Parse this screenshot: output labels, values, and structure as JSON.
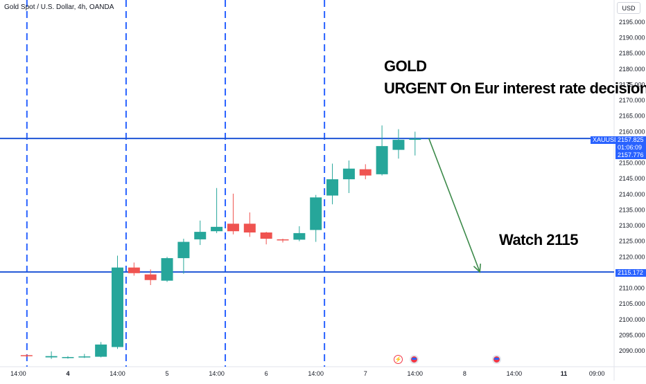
{
  "header": {
    "symbol_title": "Gold Spot / U.S. Dollar, 4h, OANDA",
    "currency": "USD"
  },
  "annotations": {
    "line1": "GOLD",
    "line2": "URGENT On Eur interest rate decision",
    "target": "Watch 2115"
  },
  "price_tags": {
    "symbol": "XAUUSD",
    "current": "2157.825",
    "countdown": "01:06:09",
    "prev": "2157.776",
    "level": "2115.172"
  },
  "chart_data": {
    "type": "candlestick",
    "title": "Gold Spot / U.S. Dollar, 4h, OANDA",
    "y_axis": {
      "min": 2087.5,
      "max": 2198.0,
      "ticks": [
        2090,
        2095,
        2100,
        2105,
        2110,
        2115,
        2120,
        2125,
        2130,
        2135,
        2140,
        2145,
        2150,
        2155,
        2160,
        2165,
        2170,
        2175,
        2180,
        2185,
        2190,
        2195
      ],
      "tick_labels": [
        "2090.000",
        "2095.000",
        "2100.000",
        "2105.000",
        "2110.000",
        "2115.000",
        "2120.000",
        "2125.000",
        "2130.000",
        "2135.000",
        "2140.000",
        "2145.000",
        "2150.000",
        "2155.000",
        "2160.000",
        "2165.000",
        "2170.000",
        "2175.000",
        "2180.000",
        "2185.000",
        "2190.000",
        "2195.000"
      ]
    },
    "x_axis": {
      "tick_labels": [
        {
          "label": "14:00",
          "slot": -5,
          "bold": false
        },
        {
          "label": "4",
          "slot": -2,
          "bold": true
        },
        {
          "label": "14:00",
          "slot": 1,
          "bold": false
        },
        {
          "label": "5",
          "slot": 4,
          "bold": false
        },
        {
          "label": "14:00",
          "slot": 7,
          "bold": false
        },
        {
          "label": "6",
          "slot": 10,
          "bold": false
        },
        {
          "label": "14:00",
          "slot": 13,
          "bold": false
        },
        {
          "label": "7",
          "slot": 16,
          "bold": false
        },
        {
          "label": "14:00",
          "slot": 19,
          "bold": false
        },
        {
          "label": "8",
          "slot": 22,
          "bold": false
        },
        {
          "label": "14:00",
          "slot": 25,
          "bold": false
        },
        {
          "label": "11",
          "slot": 28,
          "bold": true
        },
        {
          "label": "09:00",
          "slot": 30,
          "bold": false
        }
      ]
    },
    "session_separators": [
      -4,
      2,
      8,
      14
    ],
    "candles": [
      {
        "slot": -4.5,
        "o": 2088.6,
        "h": 2088.9,
        "l": 2088.0,
        "c": 2088.3
      },
      {
        "slot": -3,
        "o": 2087.9,
        "h": 2089.8,
        "l": 2087.4,
        "c": 2088.3
      },
      {
        "slot": -2,
        "o": 2087.9,
        "h": 2088.3,
        "l": 2087.5,
        "c": 2088.0
      },
      {
        "slot": -1,
        "o": 2088.0,
        "h": 2089.0,
        "l": 2087.7,
        "c": 2088.2
      },
      {
        "slot": 0,
        "o": 2088.1,
        "h": 2092.8,
        "l": 2087.9,
        "c": 2092.0
      },
      {
        "slot": 1,
        "o": 2091.2,
        "h": 2120.4,
        "l": 2090.6,
        "c": 2116.6
      },
      {
        "slot": 2,
        "o": 2116.6,
        "h": 2118.2,
        "l": 2114.0,
        "c": 2114.8
      },
      {
        "slot": 3,
        "o": 2114.4,
        "h": 2116.0,
        "l": 2111.0,
        "c": 2112.6
      },
      {
        "slot": 4,
        "o": 2112.4,
        "h": 2120.0,
        "l": 2112.0,
        "c": 2119.6
      },
      {
        "slot": 5,
        "o": 2119.6,
        "h": 2125.8,
        "l": 2114.6,
        "c": 2124.8
      },
      {
        "slot": 6,
        "o": 2125.6,
        "h": 2131.6,
        "l": 2123.8,
        "c": 2128.0
      },
      {
        "slot": 7,
        "o": 2128.2,
        "h": 2142.0,
        "l": 2127.6,
        "c": 2129.6
      },
      {
        "slot": 8,
        "o": 2130.6,
        "h": 2140.2,
        "l": 2127.2,
        "c": 2128.2
      },
      {
        "slot": 9,
        "o": 2130.6,
        "h": 2134.2,
        "l": 2126.4,
        "c": 2127.8
      },
      {
        "slot": 10,
        "o": 2127.8,
        "h": 2128.0,
        "l": 2124.0,
        "c": 2125.8
      },
      {
        "slot": 11,
        "o": 2125.6,
        "h": 2125.8,
        "l": 2124.6,
        "c": 2125.3
      },
      {
        "slot": 12,
        "o": 2125.5,
        "h": 2129.8,
        "l": 2125.0,
        "c": 2127.6
      },
      {
        "slot": 13,
        "o": 2128.6,
        "h": 2139.8,
        "l": 2124.8,
        "c": 2139.0
      },
      {
        "slot": 14,
        "o": 2139.6,
        "h": 2149.8,
        "l": 2136.8,
        "c": 2144.8
      },
      {
        "slot": 15,
        "o": 2144.8,
        "h": 2150.8,
        "l": 2140.4,
        "c": 2148.2
      },
      {
        "slot": 16,
        "o": 2148.0,
        "h": 2149.6,
        "l": 2144.8,
        "c": 2146.0
      },
      {
        "slot": 17,
        "o": 2146.4,
        "h": 2162.0,
        "l": 2146.0,
        "c": 2155.4
      },
      {
        "slot": 18,
        "o": 2154.2,
        "h": 2160.8,
        "l": 2151.4,
        "c": 2157.4
      },
      {
        "slot": 19,
        "o": 2157.4,
        "h": 2160.0,
        "l": 2152.4,
        "c": 2157.8
      }
    ],
    "horizontal_levels": [
      2157.825,
      2115.172
    ],
    "arrow": {
      "from_slot": 20,
      "from_price": 2157.9,
      "to_slot": 23,
      "to_price": 2115.2
    }
  },
  "colors": {
    "up": "#26a69a",
    "down": "#ef5350",
    "level_line": "#1e55d6",
    "separator": "#2962ff",
    "arrow": "#3c8a4a",
    "axis_text": "#131722"
  },
  "events": {
    "dividend_icon": "⚡",
    "flag_icon": "us-flag-icon"
  }
}
